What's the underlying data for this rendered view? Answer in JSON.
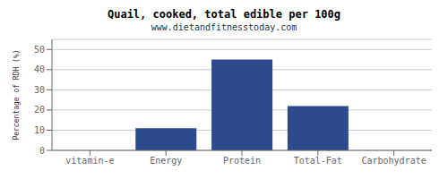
{
  "chart_data": {
    "type": "bar",
    "title": "Quail, cooked, total edible per 100g",
    "subtitle": "www.dietandfitnesstoday.com",
    "categories": [
      "vitamin-e",
      "Energy",
      "Protein",
      "Total-Fat",
      "Carbohydrate"
    ],
    "values": [
      0,
      11,
      45,
      22,
      0
    ],
    "color": "#2e4a8e",
    "ylabel": "Percentage of RDH (%)",
    "ylim": [
      0,
      55
    ],
    "yticks": [
      0,
      10,
      20,
      30,
      40,
      50
    ],
    "grid": true
  }
}
